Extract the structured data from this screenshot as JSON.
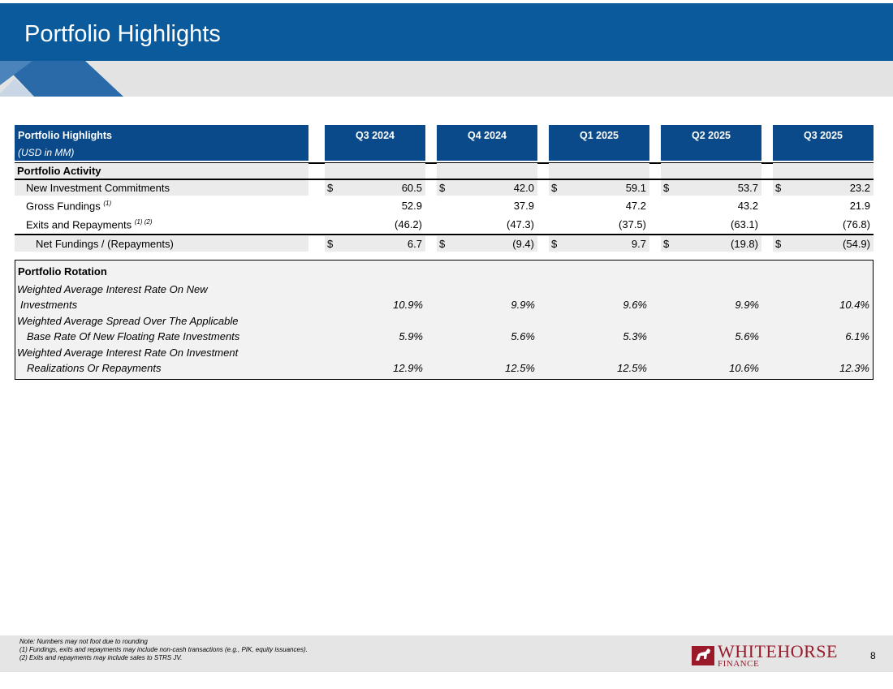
{
  "header": {
    "title": "Portfolio Highlights"
  },
  "table": {
    "title": "Portfolio Highlights",
    "subtitle": "(USD in MM)",
    "columns": [
      "Q3 2024",
      "Q4 2024",
      "Q1 2025",
      "Q2 2025",
      "Q3 2025"
    ],
    "activity_section": "Portfolio Activity",
    "currency_symbol": "$",
    "rows": [
      {
        "label": "New Investment Commitments",
        "sup": "",
        "values": [
          "60.5",
          "42.0",
          "59.1",
          "53.7",
          "23.2"
        ]
      },
      {
        "label": "Gross Fundings",
        "sup": "(1)",
        "values": [
          "52.9",
          "37.9",
          "47.2",
          "43.2",
          "21.9"
        ]
      },
      {
        "label": "Exits and Repayments",
        "sup": "(1) (2)",
        "values": [
          "(46.2)",
          "(47.3)",
          "(37.5)",
          "(63.1)",
          "(76.8)"
        ]
      },
      {
        "label": "Net Fundings / (Repayments)",
        "sup": "",
        "values": [
          "6.7",
          "(9.4)",
          "9.7",
          "(19.8)",
          "(54.9)"
        ]
      }
    ],
    "rotation_section": "Portfolio Rotation",
    "rotation_rows": [
      {
        "line1": "Weighted Average Interest Rate On New",
        "line2": "Investments",
        "values": [
          "10.9%",
          "9.9%",
          "9.6%",
          "9.9%",
          "10.4%"
        ]
      },
      {
        "line1": "Weighted Average Spread Over The Applicable",
        "line2": "Base Rate Of New Floating Rate Investments",
        "values": [
          "5.9%",
          "5.6%",
          "5.3%",
          "5.6%",
          "6.1%"
        ]
      },
      {
        "line1": "Weighted Average Interest Rate On Investment",
        "line2": "Realizations Or Repayments",
        "values": [
          "12.9%",
          "12.5%",
          "12.5%",
          "10.6%",
          "12.3%"
        ]
      }
    ]
  },
  "footer": {
    "notes": [
      "Note: Numbers may not foot due to rounding",
      "(1)    Fundings, exits and repayments may include non-cash transactions (e.g., PIK, equity issuances).",
      "(2)    Exits and repayments may include sales to STRS JV."
    ],
    "logo_word": "WHITEHORSE",
    "logo_sub": "FINANCE",
    "page_number": "8"
  },
  "colors": {
    "banner": "#0a5a9c",
    "header_cell": "#0a4a8a",
    "logo": "#9a1a2a"
  }
}
